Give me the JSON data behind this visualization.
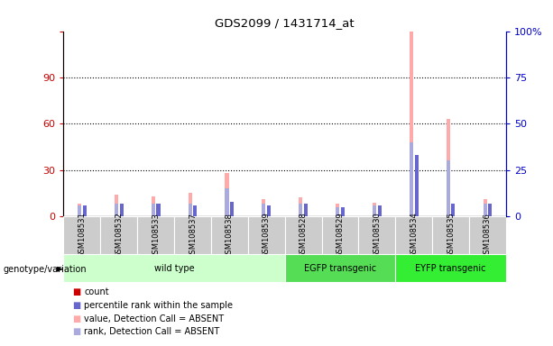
{
  "title": "GDS2099 / 1431714_at",
  "samples": [
    "GSM108531",
    "GSM108532",
    "GSM108533",
    "GSM108537",
    "GSM108538",
    "GSM108539",
    "GSM108528",
    "GSM108529",
    "GSM108530",
    "GSM108534",
    "GSM108535",
    "GSM108536"
  ],
  "groups": [
    {
      "label": "wild type",
      "start": 0,
      "end": 6
    },
    {
      "label": "EGFP transgenic",
      "start": 6,
      "end": 9
    },
    {
      "label": "EYFP transgenic",
      "start": 9,
      "end": 12
    }
  ],
  "group_colors": [
    "#ccffcc",
    "#55dd55",
    "#33ee33"
  ],
  "count_values": [
    1,
    1,
    1,
    1,
    1,
    1,
    1,
    1,
    1,
    1,
    1,
    1
  ],
  "rank_values": [
    6,
    7,
    7,
    6,
    8,
    6,
    7,
    5,
    6,
    33,
    7,
    7
  ],
  "absent_value": [
    8,
    14,
    13,
    15,
    28,
    11,
    12,
    8,
    9,
    120,
    63,
    11
  ],
  "absent_rank": [
    6,
    7,
    7,
    7,
    15,
    7,
    7,
    5,
    6,
    40,
    30,
    7
  ],
  "ylim_left": [
    0,
    120
  ],
  "yticks_left": [
    0,
    30,
    60,
    90,
    120
  ],
  "yticks_right": [
    0,
    25,
    50,
    75,
    100
  ],
  "ytick_labels_right": [
    "0",
    "25",
    "50",
    "75",
    "100%"
  ],
  "bar_width": 0.1,
  "bar_sep": 0.04,
  "colors": {
    "count": "#cc0000",
    "rank": "#6666cc",
    "absent_value": "#ffaaaa",
    "absent_rank": "#aaaadd",
    "axis_left": "#cc0000",
    "axis_right": "#0000cc",
    "sample_bg": "#cccccc"
  },
  "legend": [
    {
      "color": "#cc0000",
      "label": "count"
    },
    {
      "color": "#6666cc",
      "label": "percentile rank within the sample"
    },
    {
      "color": "#ffaaaa",
      "label": "value, Detection Call = ABSENT"
    },
    {
      "color": "#aaaadd",
      "label": "rank, Detection Call = ABSENT"
    }
  ],
  "genotype_label": "genotype/variation"
}
